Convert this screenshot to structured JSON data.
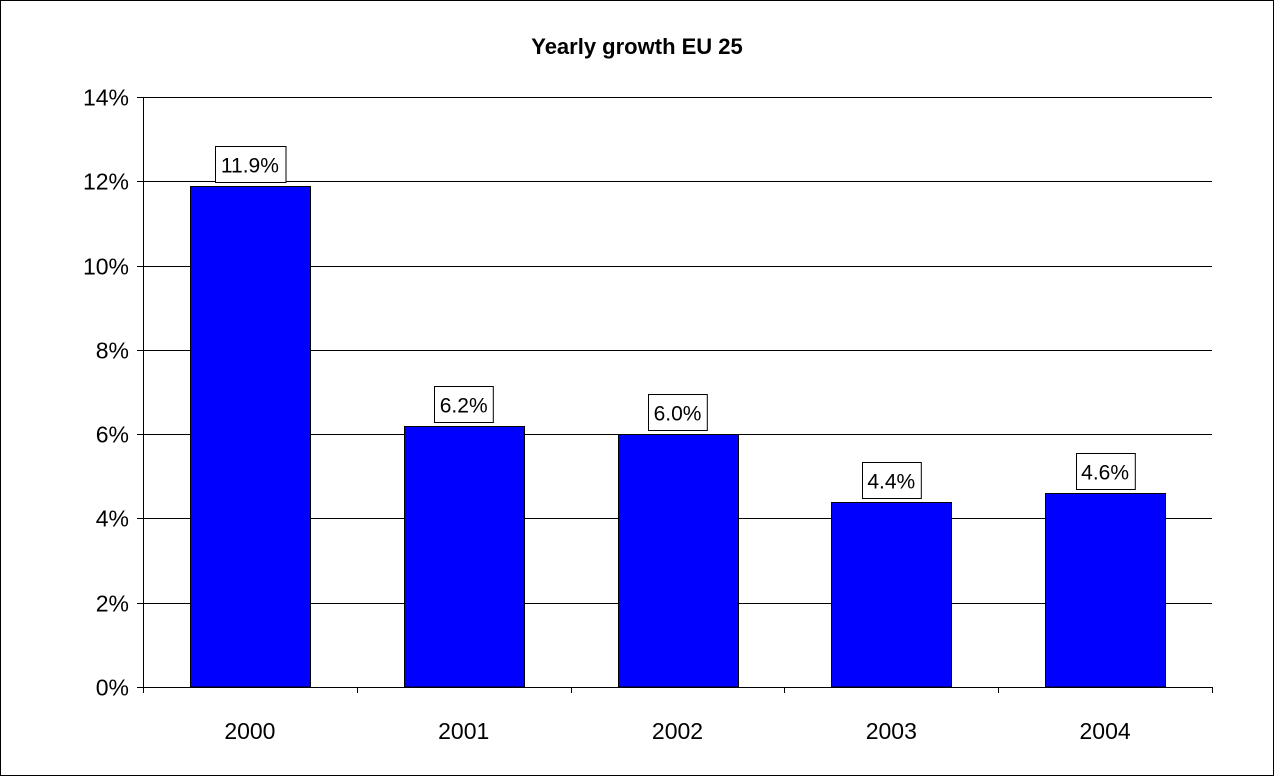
{
  "chart_data": {
    "type": "bar",
    "title": "Yearly growth EU 25",
    "xlabel": "",
    "ylabel": "",
    "categories": [
      "2000",
      "2001",
      "2002",
      "2003",
      "2004"
    ],
    "values": [
      11.9,
      6.2,
      6.0,
      4.4,
      4.6
    ],
    "data_labels": [
      "11.9%",
      "6.2%",
      "6.0%",
      "4.4%",
      "4.6%"
    ],
    "ylim": [
      0,
      14
    ],
    "y_ticks": [
      0,
      2,
      4,
      6,
      8,
      10,
      12,
      14
    ],
    "y_tick_labels": [
      "0%",
      "2%",
      "4%",
      "6%",
      "8%",
      "10%",
      "12%",
      "14%"
    ],
    "grid": true,
    "legend": "none",
    "colors": {
      "bar": "#0000FF",
      "bar_edge": "#000000",
      "grid": "#000000",
      "background": "#FFFFFF"
    }
  }
}
